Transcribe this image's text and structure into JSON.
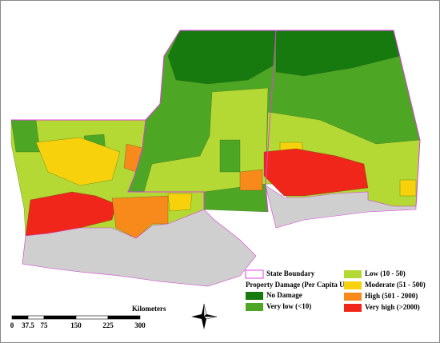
{
  "legend": {
    "boundary": "State Boundary",
    "title": "Property Damage (Per Capita USD)",
    "items": [
      {
        "label": "No Damage",
        "color": "#167a0f"
      },
      {
        "label": "Very low (<10)",
        "color": "#4ea724"
      },
      {
        "label": "Low (10 - 50)",
        "color": "#b5d934"
      },
      {
        "label": "Moderate (51 - 500)",
        "color": "#f7d10b"
      },
      {
        "label": "High (501 - 2000)",
        "color": "#f78a1a"
      },
      {
        "label": "Very high (>2000)",
        "color": "#f0261b"
      }
    ]
  },
  "scale_bar": {
    "unit": "Kilometers",
    "ticks": [
      0,
      37.5,
      75,
      150,
      225,
      300
    ]
  }
}
